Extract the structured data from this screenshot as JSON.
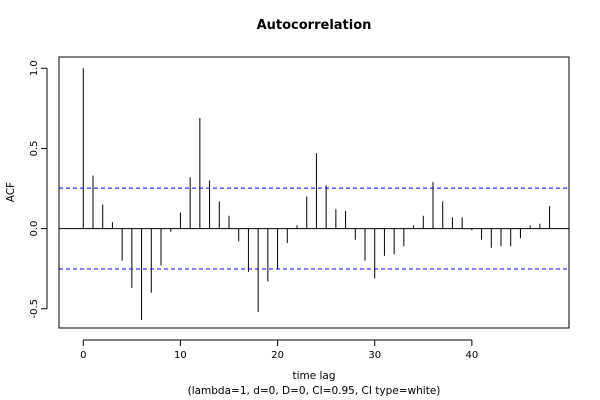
{
  "chart_data": {
    "type": "bar",
    "title": "Autocorrelation",
    "xlabel": "time lag",
    "ylabel": "ACF",
    "subtitle": "(lambda=1, d=0, D=0, CI=0.95, CI type=white)",
    "xlim": [
      -2.5,
      50
    ],
    "ylim": [
      -0.62,
      1.07
    ],
    "x_ticks": [
      0,
      10,
      20,
      30,
      40
    ],
    "y_ticks": [
      -0.5,
      0.0,
      0.5,
      1.0
    ],
    "y_tick_labels": [
      "-0.5",
      "0.0",
      "0.5",
      "1.0"
    ],
    "ci_bounds": [
      0.252,
      -0.252
    ],
    "ci_color": "#0000ff",
    "grid": false,
    "x": [
      0,
      1,
      2,
      3,
      4,
      5,
      6,
      7,
      8,
      9,
      10,
      11,
      12,
      13,
      14,
      15,
      16,
      17,
      18,
      19,
      20,
      21,
      22,
      23,
      24,
      25,
      26,
      27,
      28,
      29,
      30,
      31,
      32,
      33,
      34,
      35,
      36,
      37,
      38,
      39,
      40,
      41,
      42,
      43,
      44,
      45,
      46,
      47,
      48
    ],
    "values": [
      1.0,
      0.33,
      0.15,
      0.04,
      -0.2,
      -0.37,
      -0.57,
      -0.4,
      -0.23,
      -0.02,
      0.1,
      0.32,
      0.69,
      0.3,
      0.17,
      0.08,
      -0.08,
      -0.27,
      -0.52,
      -0.33,
      -0.25,
      -0.09,
      0.02,
      0.2,
      0.47,
      0.27,
      0.12,
      0.11,
      -0.07,
      -0.2,
      -0.31,
      -0.17,
      -0.16,
      -0.11,
      0.02,
      0.08,
      0.29,
      0.17,
      0.07,
      0.07,
      -0.01,
      -0.07,
      -0.12,
      -0.11,
      -0.11,
      -0.06,
      0.02,
      0.03,
      0.14
    ]
  }
}
